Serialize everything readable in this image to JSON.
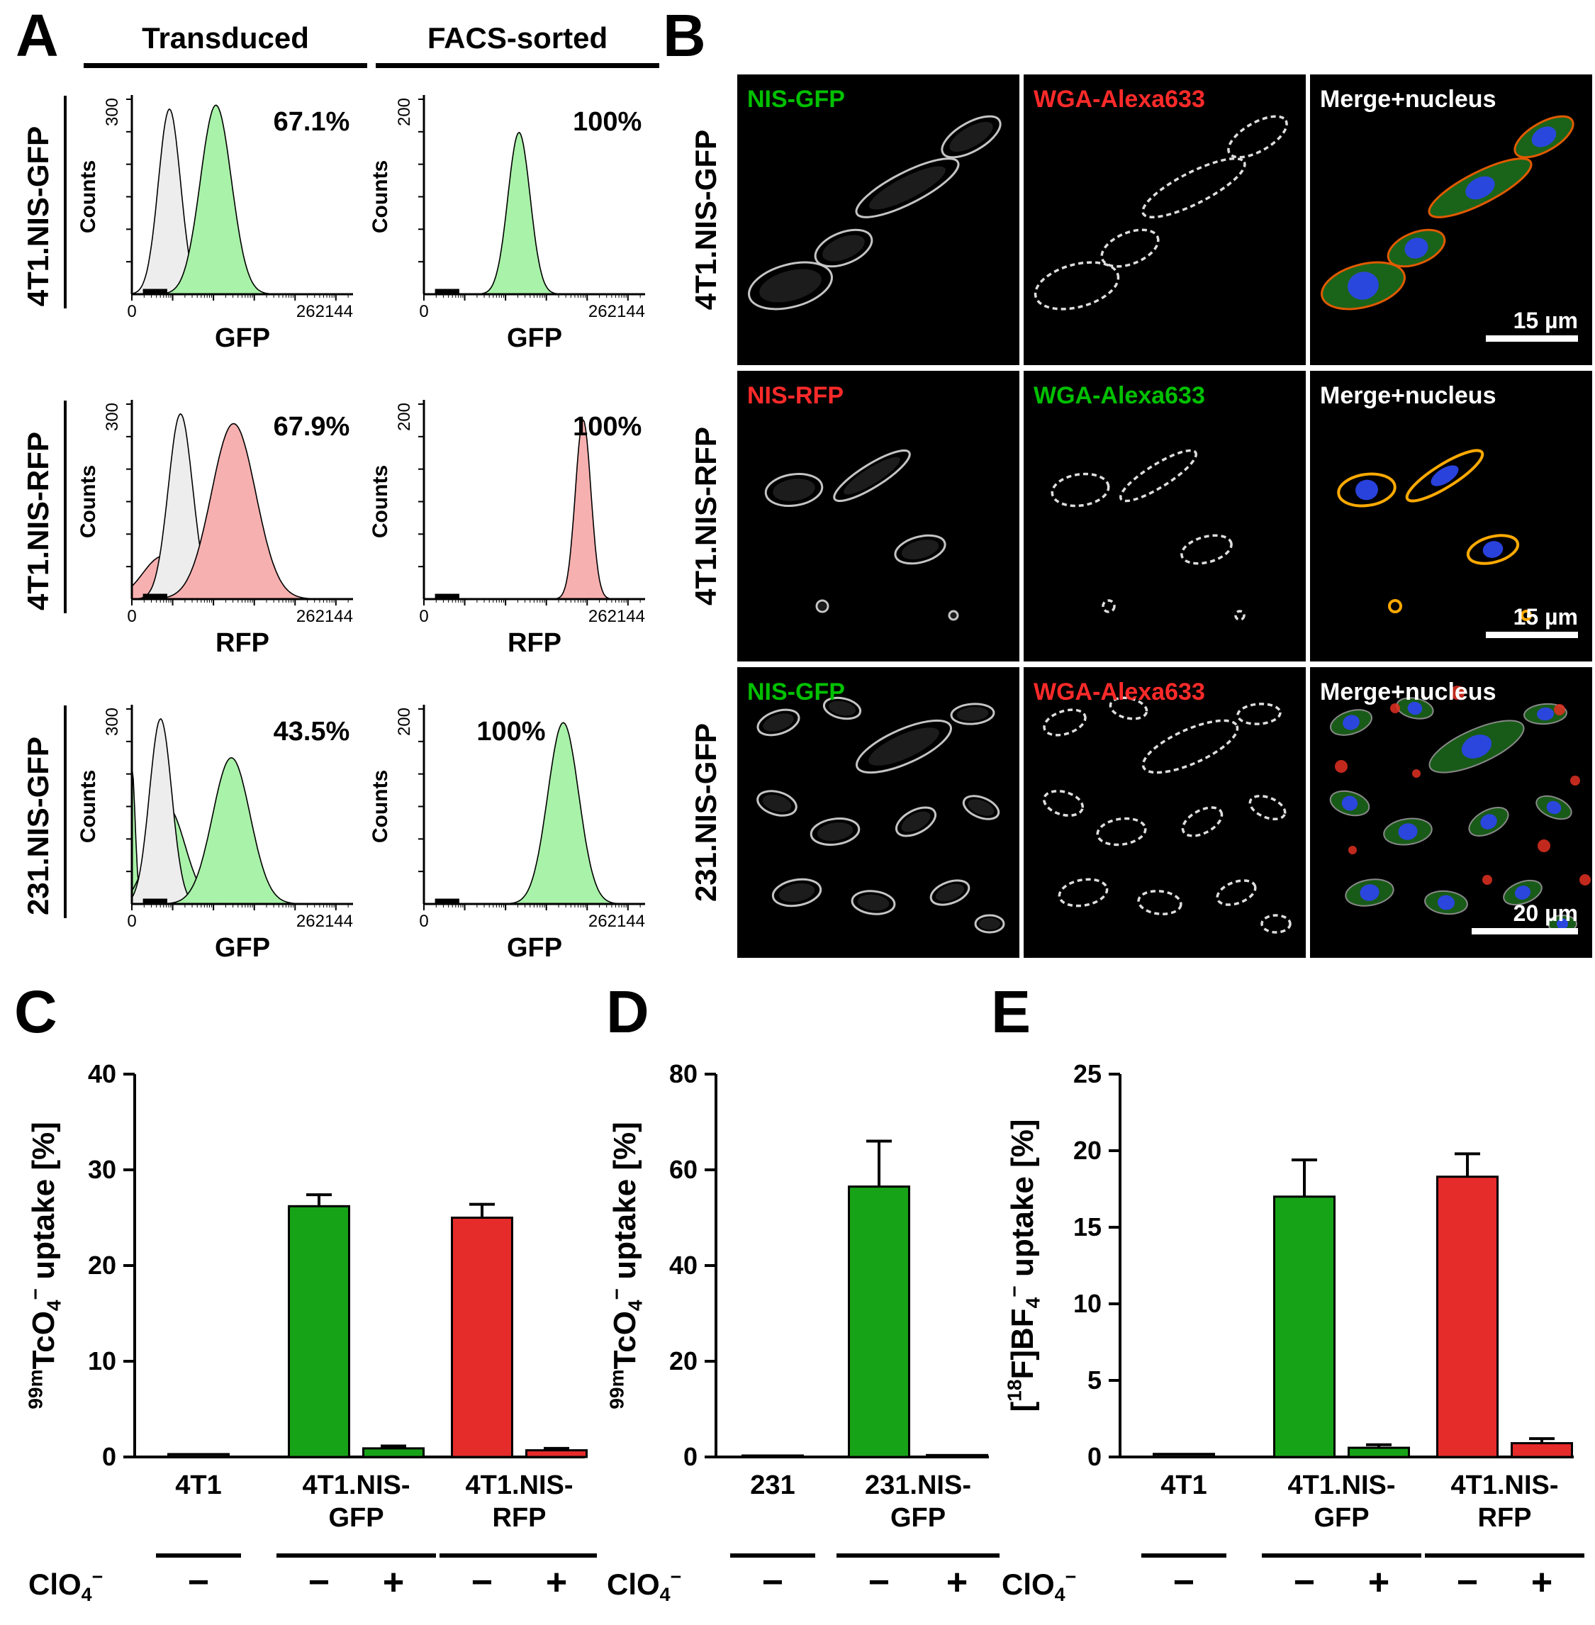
{
  "figure": {
    "letters": {
      "A": "A",
      "B": "B",
      "C": "C",
      "D": "D",
      "E": "E"
    }
  },
  "panelA": {
    "col_headers": [
      "Transduced",
      "FACS-sorted"
    ],
    "counts_label": "Counts",
    "rows": [
      {
        "row_label": "4T1.NIS-GFP",
        "x_axis_label": "GFP",
        "x_min": "0",
        "x_max": "262144",
        "transduced": {
          "percent": "67.1%",
          "y_max": "300",
          "peaks": [
            {
              "c": 0.17,
              "w": 0.05,
              "h": 0.95,
              "fill": "#ededed"
            },
            {
              "c": 0.38,
              "w": 0.07,
              "h": 0.97,
              "fill": "#a9f2a9"
            }
          ]
        },
        "facs_sorted": {
          "percent": "100%",
          "y_max": "200",
          "peaks": [
            {
              "c": 0.43,
              "w": 0.05,
              "h": 0.83,
              "fill": "#a9f2a9"
            }
          ]
        }
      },
      {
        "row_label": "4T1.NIS-RFP",
        "x_axis_label": "RFP",
        "x_min": "0",
        "x_max": "262144",
        "transduced": {
          "percent": "67.9%",
          "y_max": "300",
          "peaks": [
            {
              "c": 0.14,
              "w": 0.09,
              "h": 0.22,
              "fill": "#f7b0b0"
            },
            {
              "c": 0.22,
              "w": 0.055,
              "h": 0.95,
              "fill": "#ededed"
            },
            {
              "c": 0.46,
              "w": 0.1,
              "h": 0.9,
              "fill": "#f7b0b0"
            }
          ]
        },
        "facs_sorted": {
          "percent": "100%",
          "y_max": "200",
          "peaks": [
            {
              "c": 0.72,
              "w": 0.035,
              "h": 0.92,
              "fill": "#f7b0b0"
            }
          ]
        }
      },
      {
        "row_label": "231.NIS-GFP",
        "x_axis_label": "GFP",
        "x_min": "0",
        "x_max": "262144",
        "transduced": {
          "percent": "43.5%",
          "y_max": "300",
          "peaks": [
            {
              "c": 0.0,
              "w": 0.015,
              "h": 0.7,
              "fill": "#a9f2a9"
            },
            {
              "c": 0.16,
              "w": 0.08,
              "h": 0.5,
              "fill": "#a9f2a9"
            },
            {
              "c": 0.13,
              "w": 0.05,
              "h": 0.95,
              "fill": "#ededed"
            },
            {
              "c": 0.45,
              "w": 0.085,
              "h": 0.75,
              "fill": "#a9f2a9"
            }
          ]
        },
        "facs_sorted": {
          "percent": "100%",
          "y_max": "200",
          "pct_x": 0.55,
          "peaks": [
            {
              "c": 0.63,
              "w": 0.07,
              "h": 0.93,
              "fill": "#a9f2a9"
            }
          ]
        }
      }
    ]
  },
  "panelB": {
    "rows": [
      {
        "row_label": "4T1.NIS-GFP",
        "cells": [
          {
            "label": "NIS-GFP",
            "label_color": "#00c000",
            "style": "gray"
          },
          {
            "label": "WGA-Alexa633",
            "label_color": "#ff2a2a",
            "style": "gray"
          },
          {
            "label": "Merge+nucleus",
            "label_color": "#ffffff",
            "style": "merge",
            "scale_bar": "15 µm"
          }
        ]
      },
      {
        "row_label": "4T1.NIS-RFP",
        "cells": [
          {
            "label": "NIS-RFP",
            "label_color": "#ff2a2a",
            "style": "gray"
          },
          {
            "label": "WGA-Alexa633",
            "label_color": "#00c000",
            "style": "gray"
          },
          {
            "label": "Merge+nucleus",
            "label_color": "#ffffff",
            "style": "merge",
            "scale_bar": "15 µm"
          }
        ]
      },
      {
        "row_label": "231.NIS-GFP",
        "cells": [
          {
            "label": "NIS-GFP",
            "label_color": "#00c000",
            "style": "gray"
          },
          {
            "label": "WGA-Alexa633",
            "label_color": "#ff2a2a",
            "style": "gray"
          },
          {
            "label": "Merge+nucleus",
            "label_color": "#ffffff",
            "style": "merge",
            "scale_bar": "20 µm"
          }
        ]
      }
    ]
  },
  "clo4_parts": [
    {
      "s": "n",
      "v": "ClO"
    },
    {
      "s": "sub",
      "v": "4"
    },
    {
      "s": "sup",
      "v": "−"
    }
  ],
  "chart_data": [
    {
      "id": "C",
      "type": "bar",
      "ylabel_parts": [
        {
          "s": "sup",
          "v": "99m"
        },
        {
          "s": "n",
          "v": "TcO"
        },
        {
          "s": "sub",
          "v": "4"
        },
        {
          "s": "sup",
          "v": "−"
        },
        {
          "s": "n",
          "v": " uptake [%]"
        }
      ],
      "ylim": [
        0,
        40
      ],
      "yticks": [
        0,
        10,
        20,
        30,
        40
      ],
      "bars": [
        {
          "value": 0.3,
          "err": 0,
          "color": "#111111"
        },
        {
          "value": 26.2,
          "err": 1.2,
          "color": "#17a317"
        },
        {
          "value": 0.9,
          "err": 0.25,
          "color": "#17a317"
        },
        {
          "value": 25.0,
          "err": 1.4,
          "color": "#e62b2b"
        },
        {
          "value": 0.7,
          "err": 0.2,
          "color": "#e62b2b"
        }
      ],
      "groups": [
        {
          "lines": [
            "4T1"
          ],
          "bars": [
            0
          ]
        },
        {
          "lines": [
            "4T1.NIS-",
            "GFP"
          ],
          "bars": [
            1,
            2
          ]
        },
        {
          "lines": [
            "4T1.NIS-",
            "RFP"
          ],
          "bars": [
            3,
            4
          ]
        }
      ],
      "clo4_signs": [
        "−",
        "−",
        "+",
        "−",
        "+"
      ]
    },
    {
      "id": "D",
      "type": "bar",
      "ylabel_parts": [
        {
          "s": "sup",
          "v": "99m"
        },
        {
          "s": "n",
          "v": "TcO"
        },
        {
          "s": "sub",
          "v": "4"
        },
        {
          "s": "sup",
          "v": "−"
        },
        {
          "s": "n",
          "v": " uptake [%]"
        }
      ],
      "ylim": [
        0,
        80
      ],
      "yticks": [
        0,
        20,
        40,
        60,
        80
      ],
      "bars": [
        {
          "value": 0.3,
          "err": 0,
          "color": "#111111"
        },
        {
          "value": 56.5,
          "err": 9.5,
          "color": "#17a317"
        },
        {
          "value": 0.4,
          "err": 0,
          "color": "#17a317"
        }
      ],
      "groups": [
        {
          "lines": [
            "231"
          ],
          "bars": [
            0
          ]
        },
        {
          "lines": [
            "231.NIS-",
            "GFP"
          ],
          "bars": [
            1,
            2
          ]
        }
      ],
      "clo4_signs": [
        "−",
        "−",
        "+"
      ]
    },
    {
      "id": "E",
      "type": "bar",
      "ylabel_parts": [
        {
          "s": "n",
          "v": "["
        },
        {
          "s": "sup",
          "v": "18"
        },
        {
          "s": "n",
          "v": "F]BF"
        },
        {
          "s": "sub",
          "v": "4"
        },
        {
          "s": "sup",
          "v": "−"
        },
        {
          "s": "n",
          "v": " uptake [%]"
        }
      ],
      "ylim": [
        0,
        25
      ],
      "yticks": [
        0,
        5,
        10,
        15,
        20,
        25
      ],
      "bars": [
        {
          "value": 0.2,
          "err": 0,
          "color": "#111111"
        },
        {
          "value": 17.0,
          "err": 2.4,
          "color": "#17a317"
        },
        {
          "value": 0.6,
          "err": 0.2,
          "color": "#17a317"
        },
        {
          "value": 18.3,
          "err": 1.5,
          "color": "#e62b2b"
        },
        {
          "value": 0.9,
          "err": 0.3,
          "color": "#e62b2b"
        }
      ],
      "groups": [
        {
          "lines": [
            "4T1"
          ],
          "bars": [
            0
          ]
        },
        {
          "lines": [
            "4T1.NIS-",
            "GFP"
          ],
          "bars": [
            1,
            2
          ]
        },
        {
          "lines": [
            "4T1.NIS-",
            "RFP"
          ],
          "bars": [
            3,
            4
          ]
        }
      ],
      "clo4_signs": [
        "−",
        "−",
        "+",
        "−",
        "+"
      ]
    }
  ]
}
